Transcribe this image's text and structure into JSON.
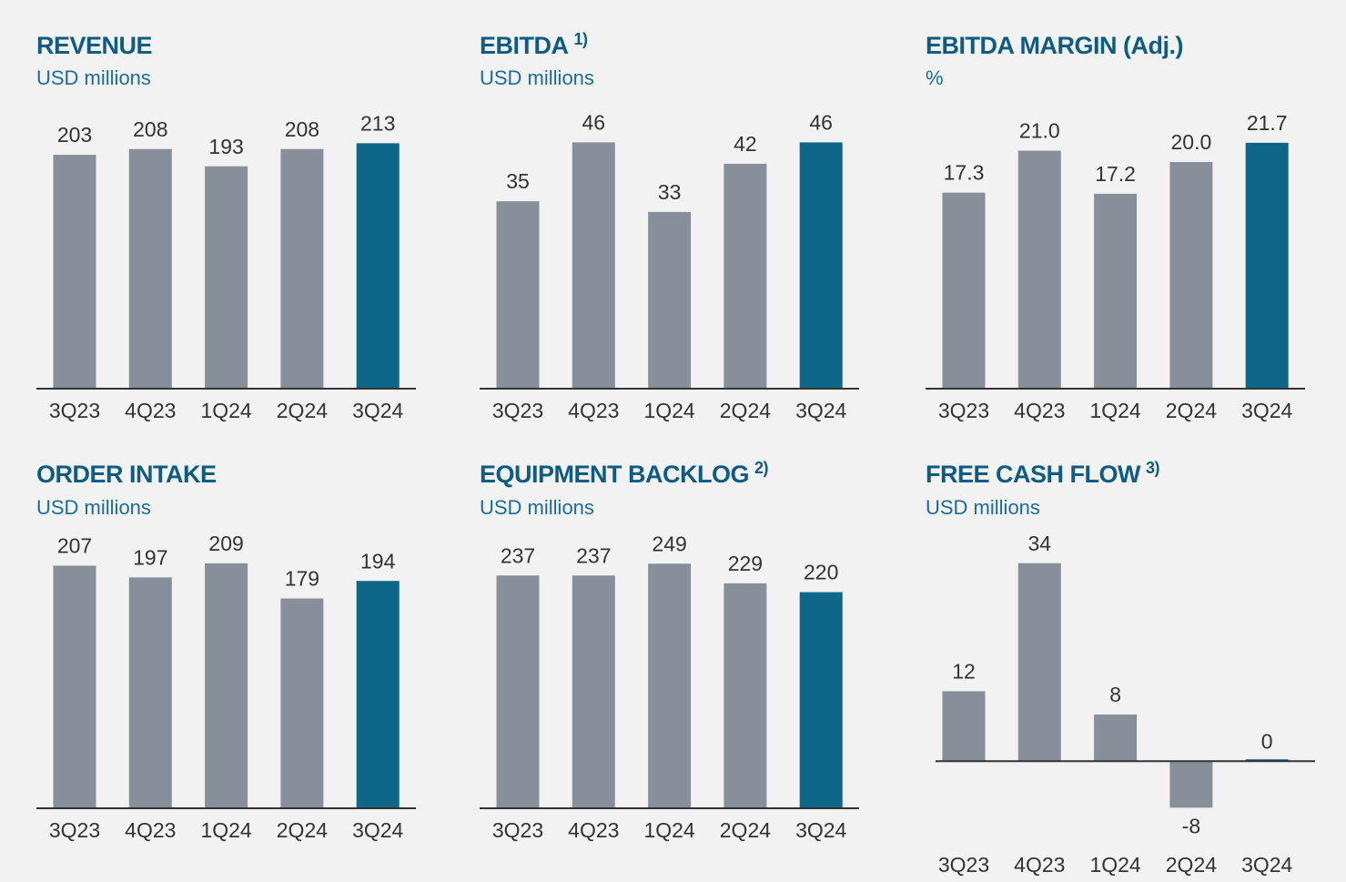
{
  "chart_data": [
    {
      "type": "bar",
      "title": "REVENUE",
      "subtitle": "USD millions",
      "categories": [
        "3Q23",
        "4Q23",
        "1Q24",
        "2Q24",
        "3Q24"
      ],
      "values": [
        203,
        208,
        193,
        208,
        213
      ],
      "colors": [
        "#87909a",
        "#87909a",
        "#87909a",
        "#87909a",
        "#0e6689"
      ],
      "ylim": [
        0,
        237
      ]
    },
    {
      "type": "bar",
      "title": "EBITDA",
      "title_note": "1)",
      "subtitle": "USD millions",
      "categories": [
        "3Q23",
        "4Q23",
        "1Q24",
        "2Q24",
        "3Q24"
      ],
      "values": [
        35,
        46,
        33,
        42,
        46
      ],
      "colors": [
        "#87909a",
        "#87909a",
        "#87909a",
        "#87909a",
        "#0e6689"
      ],
      "ylim": [
        0,
        51
      ]
    },
    {
      "type": "bar",
      "title": "EBITDA MARGIN (Adj.)",
      "subtitle": "%",
      "categories": [
        "3Q23",
        "4Q23",
        "1Q24",
        "2Q24",
        "3Q24"
      ],
      "values": [
        17.3,
        21,
        17.2,
        20,
        21.7
      ],
      "value_labels": [
        "17.3",
        "21.0",
        "17.2",
        "20.0",
        "21.7"
      ],
      "colors": [
        "#87909a",
        "#87909a",
        "#87909a",
        "#87909a",
        "#0e6689"
      ],
      "ylim": [
        0,
        24.1
      ]
    },
    {
      "type": "bar",
      "title": "ORDER INTAKE",
      "subtitle": "USD millions",
      "categories": [
        "3Q23",
        "4Q23",
        "1Q24",
        "2Q24",
        "3Q24"
      ],
      "values": [
        207,
        197,
        209,
        179,
        194
      ],
      "colors": [
        "#87909a",
        "#87909a",
        "#87909a",
        "#87909a",
        "#0e6689"
      ],
      "ylim": [
        0,
        233
      ]
    },
    {
      "type": "bar",
      "title": "EQUIPMENT BACKLOG",
      "title_note": "2)",
      "subtitle": "USD millions",
      "categories": [
        "3Q23",
        "4Q23",
        "1Q24",
        "2Q24",
        "3Q24"
      ],
      "values": [
        237,
        237,
        249,
        229,
        220
      ],
      "colors": [
        "#87909a",
        "#87909a",
        "#87909a",
        "#87909a",
        "#0e6689"
      ],
      "ylim": [
        0,
        278
      ]
    },
    {
      "type": "bar",
      "title": "FREE CASH FLOW",
      "title_note": "3)",
      "subtitle": "USD millions",
      "categories": [
        "3Q23",
        "4Q23",
        "1Q24",
        "2Q24",
        "3Q24"
      ],
      "values": [
        12,
        34,
        8,
        -8,
        0
      ],
      "colors": [
        "#87909a",
        "#87909a",
        "#87909a",
        "#87909a",
        "#0e6689"
      ],
      "ylim": [
        -8.1,
        38.8
      ]
    }
  ]
}
